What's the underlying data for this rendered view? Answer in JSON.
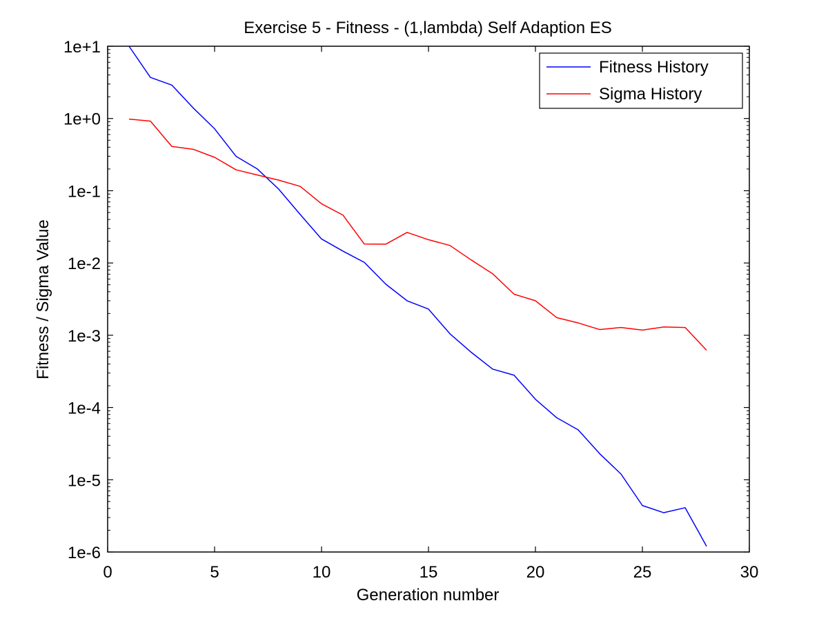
{
  "chart_data": {
    "type": "line",
    "title": "Exercise 5 - Fitness - (1,lambda) Self Adaption ES",
    "xlabel": "Generation number",
    "ylabel": "Fitness / Sigma Value",
    "xlim": [
      0,
      30
    ],
    "ylim": [
      1e-06,
      10
    ],
    "yscale": "log",
    "grid": false,
    "legend_position": "top-right",
    "x_ticks": [
      0,
      5,
      10,
      15,
      20,
      25,
      30
    ],
    "x_tick_labels": [
      "0",
      "5",
      "10",
      "15",
      "20",
      "25",
      "30"
    ],
    "y_ticks": [
      10,
      1,
      0.1,
      0.01,
      0.001,
      0.0001,
      1e-05,
      1e-06
    ],
    "y_tick_labels": [
      "1e+1",
      "1e+0",
      "1e-1",
      "1e-2",
      "1e-3",
      "1e-4",
      "1e-5",
      "1e-6"
    ],
    "x": [
      1,
      2,
      3,
      4,
      5,
      6,
      7,
      8,
      9,
      10,
      11,
      12,
      13,
      14,
      15,
      16,
      17,
      18,
      19,
      20,
      21,
      22,
      23,
      24,
      25,
      26,
      27,
      28
    ],
    "series": [
      {
        "name": "Fitness History",
        "color": "#0000ff",
        "values": [
          10,
          3.7,
          2.9,
          1.4,
          0.72,
          0.3,
          0.2,
          0.105,
          0.047,
          0.0215,
          0.0146,
          0.0102,
          0.0051,
          0.003,
          0.0023,
          0.00105,
          0.00058,
          0.00034,
          0.00028,
          0.00013,
          7.2e-05,
          4.9e-05,
          2.3e-05,
          1.2e-05,
          4.4e-06,
          3.5e-06,
          4.1e-06,
          1.2e-06
        ]
      },
      {
        "name": "Sigma History",
        "color": "#ff0000",
        "values": [
          0.98,
          0.92,
          0.41,
          0.375,
          0.29,
          0.195,
          0.165,
          0.14,
          0.115,
          0.066,
          0.046,
          0.0183,
          0.0182,
          0.0265,
          0.021,
          0.0175,
          0.011,
          0.0071,
          0.0037,
          0.003,
          0.00175,
          0.00148,
          0.0012,
          0.00128,
          0.00118,
          0.0013,
          0.00128,
          0.00062
        ]
      }
    ]
  }
}
